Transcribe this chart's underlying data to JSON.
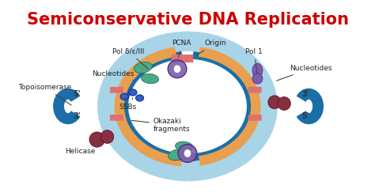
{
  "title": "Semiconservative DNA Replication",
  "title_color": "#cc0000",
  "title_fontsize": 15,
  "bg_color": "#ffffff",
  "dna_blue": "#1a6fa8",
  "dna_light": "#a8d4e8",
  "dna_orange": "#e8a050",
  "dna_pink": "#e07070",
  "pcna_purple": "#7a5faa",
  "pol_green": "#4aaa88",
  "ssb_blue": "#3060c0",
  "helicase_wine": "#883040",
  "labels": {
    "pcna": "PCNA",
    "origin": "Origin",
    "pol_delta": "Pol δ/ε/III",
    "nucleotides_left": "Nucleotides",
    "topoisomerase": "Topoisomerase",
    "ssbs": "SSBs",
    "okazaki": "Okazaki\nfragments",
    "helicase": "Helicase",
    "pol1": "Pol 1",
    "nucleotides_right": "Nucleotides",
    "five_prime_left": "5'",
    "three_prime_left": "3'",
    "three_prime_right": "3'",
    "five_prime_right": "5'"
  }
}
